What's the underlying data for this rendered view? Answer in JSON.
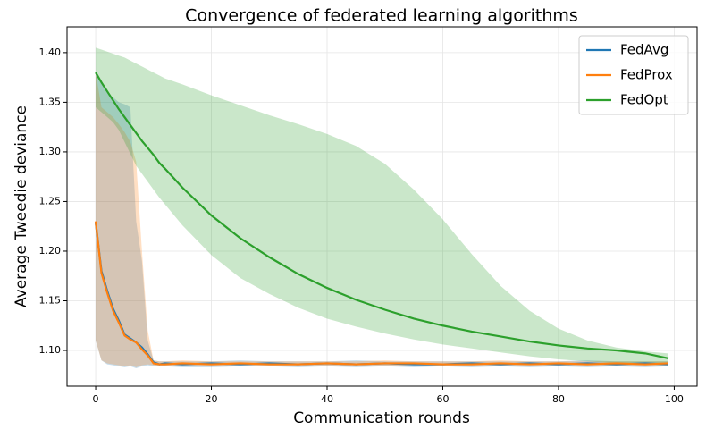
{
  "chart_data": {
    "type": "line",
    "title": "Convergence of federated learning algorithms",
    "x_label": "Communication rounds",
    "y_label": "Average Tweedie deviance",
    "x": [
      0,
      1,
      2,
      3,
      4,
      5,
      6,
      7,
      8,
      9,
      10,
      11,
      12,
      15,
      20,
      25,
      30,
      35,
      40,
      45,
      50,
      55,
      60,
      65,
      70,
      75,
      80,
      85,
      90,
      95,
      99
    ],
    "series": [
      {
        "name": "FedAvg",
        "color": "#1f77b4",
        "values": [
          1.229,
          1.18,
          1.16,
          1.142,
          1.13,
          1.116,
          1.112,
          1.108,
          1.103,
          1.096,
          1.088,
          1.086,
          1.087,
          1.086,
          1.087,
          1.086,
          1.087,
          1.086,
          1.087,
          1.086,
          1.087,
          1.086,
          1.086,
          1.087,
          1.086,
          1.087,
          1.086,
          1.087,
          1.086,
          1.087,
          1.086
        ],
        "upper": [
          1.38,
          1.37,
          1.36,
          1.355,
          1.35,
          1.348,
          1.345,
          1.23,
          1.19,
          1.11,
          1.09,
          1.089,
          1.089,
          1.089,
          1.089,
          1.09,
          1.089,
          1.089,
          1.089,
          1.09,
          1.089,
          1.089,
          1.089,
          1.089,
          1.089,
          1.089,
          1.089,
          1.09,
          1.089,
          1.089,
          1.089
        ],
        "lower": [
          1.11,
          1.09,
          1.086,
          1.085,
          1.084,
          1.083,
          1.084,
          1.082,
          1.084,
          1.085,
          1.084,
          1.084,
          1.084,
          1.083,
          1.083,
          1.084,
          1.084,
          1.083,
          1.084,
          1.083,
          1.084,
          1.083,
          1.084,
          1.083,
          1.084,
          1.083,
          1.084,
          1.083,
          1.084,
          1.083,
          1.084
        ]
      },
      {
        "name": "FedProx",
        "color": "#ff7f0e",
        "values": [
          1.23,
          1.178,
          1.158,
          1.14,
          1.128,
          1.115,
          1.111,
          1.108,
          1.101,
          1.095,
          1.087,
          1.086,
          1.086,
          1.087,
          1.086,
          1.087,
          1.086,
          1.086,
          1.087,
          1.086,
          1.087,
          1.087,
          1.086,
          1.086,
          1.087,
          1.086,
          1.087,
          1.086,
          1.087,
          1.086,
          1.087
        ],
        "upper": [
          1.38,
          1.345,
          1.34,
          1.335,
          1.328,
          1.32,
          1.31,
          1.29,
          1.2,
          1.12,
          1.09,
          1.089,
          1.089,
          1.09,
          1.089,
          1.089,
          1.089,
          1.089,
          1.089,
          1.089,
          1.09,
          1.089,
          1.089,
          1.089,
          1.09,
          1.089,
          1.089,
          1.089,
          1.089,
          1.089,
          1.089
        ],
        "lower": [
          1.11,
          1.09,
          1.087,
          1.086,
          1.085,
          1.084,
          1.085,
          1.083,
          1.085,
          1.086,
          1.085,
          1.084,
          1.084,
          1.084,
          1.084,
          1.085,
          1.084,
          1.084,
          1.084,
          1.084,
          1.084,
          1.085,
          1.084,
          1.084,
          1.084,
          1.085,
          1.084,
          1.084,
          1.084,
          1.084,
          1.084
        ]
      },
      {
        "name": "FedOpt",
        "color": "#2ca02c",
        "values": [
          1.38,
          1.37,
          1.361,
          1.352,
          1.343,
          1.335,
          1.327,
          1.319,
          1.311,
          1.304,
          1.297,
          1.289,
          1.283,
          1.264,
          1.236,
          1.213,
          1.194,
          1.177,
          1.163,
          1.151,
          1.141,
          1.132,
          1.125,
          1.119,
          1.114,
          1.109,
          1.105,
          1.102,
          1.1,
          1.097,
          1.092
        ],
        "upper": [
          1.405,
          1.403,
          1.401,
          1.399,
          1.397,
          1.395,
          1.392,
          1.389,
          1.386,
          1.383,
          1.38,
          1.377,
          1.374,
          1.368,
          1.357,
          1.347,
          1.337,
          1.328,
          1.318,
          1.306,
          1.288,
          1.262,
          1.232,
          1.197,
          1.165,
          1.14,
          1.122,
          1.11,
          1.103,
          1.099,
          1.097
        ],
        "lower": [
          1.345,
          1.34,
          1.335,
          1.33,
          1.322,
          1.31,
          1.298,
          1.286,
          1.278,
          1.27,
          1.262,
          1.254,
          1.247,
          1.226,
          1.196,
          1.173,
          1.157,
          1.143,
          1.132,
          1.124,
          1.117,
          1.111,
          1.106,
          1.102,
          1.098,
          1.094,
          1.091,
          1.089,
          1.087,
          1.086,
          1.085
        ]
      }
    ],
    "band_opacity": 0.25,
    "xlim": [
      -4.95,
      103.95
    ],
    "xticks": [
      0,
      20,
      40,
      60,
      80,
      100
    ],
    "ylim": [
      1.064,
      1.426
    ],
    "yticks": [
      {
        "value": 1.1,
        "label": "1.10"
      },
      1.15,
      {
        "value": 1.2,
        "label": "1.20"
      },
      1.25,
      {
        "value": 1.3,
        "label": "1.30"
      },
      1.35,
      {
        "value": 1.4,
        "label": "1.40"
      }
    ],
    "grid": true,
    "legend": "upper right"
  }
}
